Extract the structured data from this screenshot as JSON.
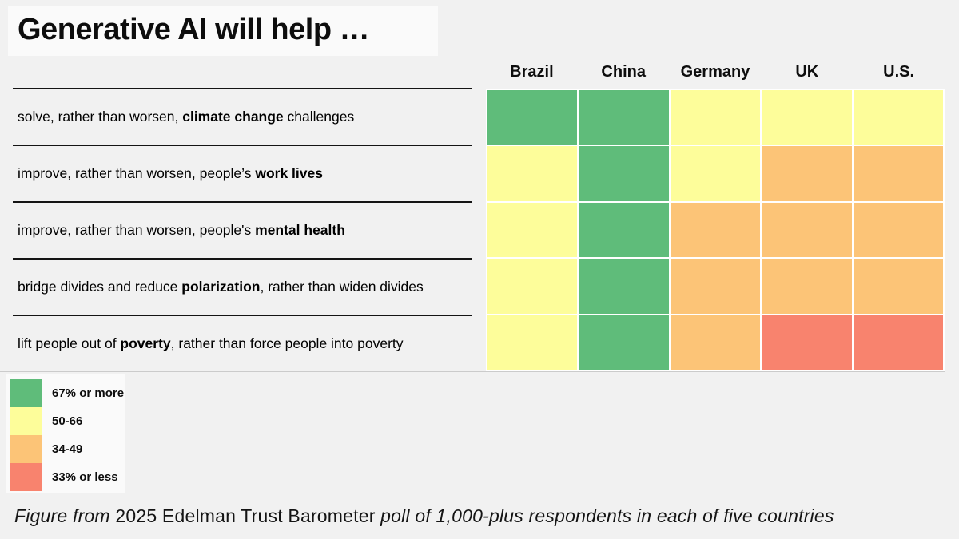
{
  "title": "Generative AI will help …",
  "columns": [
    "Brazil",
    "China",
    "Germany",
    "UK",
    "U.S."
  ],
  "rows": [
    {
      "label_parts": [
        {
          "text": "solve, rather than worsen, ",
          "bold": false
        },
        {
          "text": "climate change",
          "bold": true
        },
        {
          "text": " challenges",
          "bold": false
        }
      ],
      "cells": [
        "green",
        "green",
        "yellow",
        "yellow",
        "yellow"
      ]
    },
    {
      "label_parts": [
        {
          "text": "improve, rather than worsen, people’s ",
          "bold": false
        },
        {
          "text": "work lives",
          "bold": true
        }
      ],
      "cells": [
        "yellow",
        "green",
        "yellow",
        "orange",
        "orange"
      ]
    },
    {
      "label_parts": [
        {
          "text": "improve, rather than worsen, people's ",
          "bold": false
        },
        {
          "text": "mental health",
          "bold": true
        }
      ],
      "cells": [
        "yellow",
        "green",
        "orange",
        "orange",
        "orange"
      ]
    },
    {
      "label_parts": [
        {
          "text": "bridge divides and reduce ",
          "bold": false
        },
        {
          "text": "polarization",
          "bold": true
        },
        {
          "text": ", rather than widen divides",
          "bold": false
        }
      ],
      "cells": [
        "yellow",
        "green",
        "orange",
        "orange",
        "orange"
      ]
    },
    {
      "label_parts": [
        {
          "text": "lift people out of ",
          "bold": false
        },
        {
          "text": "poverty",
          "bold": true
        },
        {
          "text": ", rather than force people into poverty",
          "bold": false
        }
      ],
      "cells": [
        "yellow",
        "green",
        "orange",
        "red",
        "red"
      ]
    }
  ],
  "legend": [
    {
      "color_key": "green",
      "label": "67% or more"
    },
    {
      "color_key": "yellow",
      "label": "50-66"
    },
    {
      "color_key": "orange",
      "label": "34-49"
    },
    {
      "color_key": "red",
      "label": "33% or less"
    }
  ],
  "colors": {
    "green": "#5fbc7a",
    "yellow": "#fdfd9a",
    "orange": "#fcc477",
    "red": "#f8836e"
  },
  "caption_parts": [
    {
      "text": "Figure from ",
      "italic": true
    },
    {
      "text": "2025 Edelman Trust Barometer",
      "italic": false
    },
    {
      "text": " poll of 1,000-plus respondents in each of five countries",
      "italic": true
    }
  ],
  "chart_data": {
    "type": "heatmap",
    "title": "Generative AI will help …",
    "columns": [
      "Brazil",
      "China",
      "Germany",
      "UK",
      "U.S."
    ],
    "row_labels": [
      "solve, rather than worsen, climate change challenges",
      "improve, rather than worsen, people’s work lives",
      "improve, rather than worsen, people's mental health",
      "bridge divides and reduce polarization, rather than widen divides",
      "lift people out of poverty, rather than force people into poverty"
    ],
    "values": [
      [
        "67% or more",
        "67% or more",
        "50-66",
        "50-66",
        "50-66"
      ],
      [
        "50-66",
        "67% or more",
        "50-66",
        "34-49",
        "34-49"
      ],
      [
        "50-66",
        "67% or more",
        "34-49",
        "34-49",
        "34-49"
      ],
      [
        "50-66",
        "67% or more",
        "34-49",
        "34-49",
        "34-49"
      ],
      [
        "50-66",
        "67% or more",
        "34-49",
        "33% or less",
        "33% or less"
      ]
    ],
    "legend": [
      {
        "label": "67% or more",
        "color": "#5fbc7a"
      },
      {
        "label": "50-66",
        "color": "#fdfd9a"
      },
      {
        "label": "34-49",
        "color": "#fcc477"
      },
      {
        "label": "33% or less",
        "color": "#f8836e"
      }
    ],
    "legend_position": "bottom-left",
    "caption": "Figure from 2025 Edelman Trust Barometer poll of 1,000-plus respondents in each of five countries"
  }
}
